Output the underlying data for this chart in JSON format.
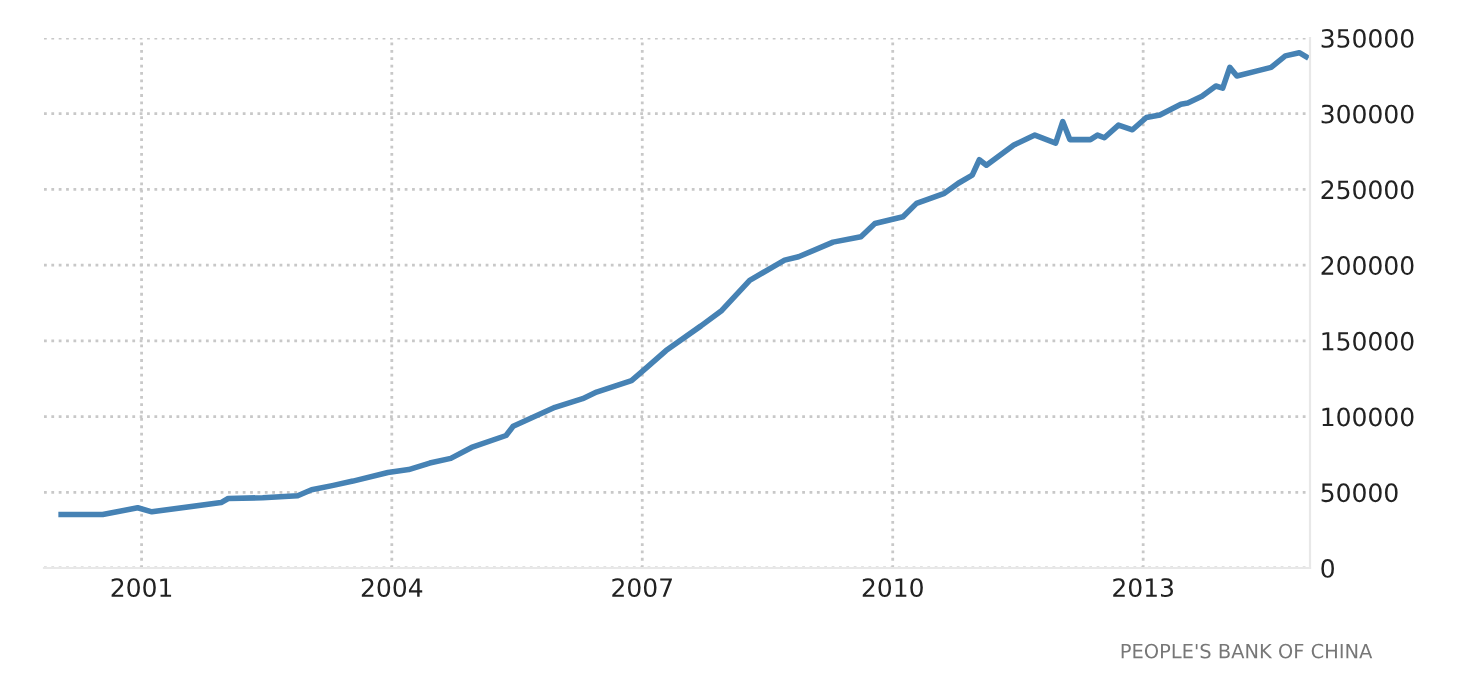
{
  "chart_data": {
    "type": "line",
    "x": [
      "2000-01",
      "2000-07",
      "2000-12",
      "2001-02",
      "2001-12",
      "2002-01",
      "2002-06",
      "2002-11",
      "2003-01",
      "2003-04",
      "2003-07",
      "2003-12",
      "2004-03",
      "2004-06",
      "2004-09",
      "2004-12",
      "2005-05",
      "2005-06",
      "2005-12",
      "2006-04",
      "2006-06",
      "2006-11",
      "2007-01",
      "2007-04",
      "2007-09",
      "2007-12",
      "2008-04",
      "2008-09",
      "2008-11",
      "2009-04",
      "2009-08",
      "2009-10",
      "2010-02",
      "2010-04",
      "2010-08",
      "2010-10",
      "2010-12",
      "2011-01",
      "2011-02",
      "2011-06",
      "2011-09",
      "2011-12",
      "2012-01",
      "2012-02",
      "2012-05",
      "2012-06",
      "2012-07",
      "2012-09",
      "2012-11",
      "2013-01",
      "2013-03",
      "2013-06",
      "2013-07",
      "2013-09",
      "2013-11",
      "2013-12",
      "2014-01",
      "2014-02",
      "2014-05",
      "2014-07",
      "2014-09",
      "2014-11",
      "2014-12"
    ],
    "series": [
      {
        "color": "#4682b4",
        "values": [
          35300,
          35300,
          39800,
          37100,
          43200,
          45900,
          46400,
          47700,
          51700,
          54400,
          57400,
          63100,
          65000,
          69300,
          72400,
          79600,
          87500,
          93600,
          106100,
          111800,
          116200,
          123700,
          131700,
          143600,
          159900,
          170100,
          190000,
          203300,
          205500,
          215200,
          218800,
          227500,
          232000,
          240800,
          247400,
          254100,
          259400,
          269600,
          266000,
          279300,
          285900,
          280600,
          294800,
          282900,
          282900,
          285900,
          284100,
          292500,
          289400,
          297500,
          299200,
          306300,
          307100,
          311600,
          318300,
          316900,
          330600,
          324900,
          328300,
          330600,
          338200,
          340300,
          337600
        ]
      }
    ],
    "xlim": [
      "1999-11",
      "2015-01"
    ],
    "xticks": [
      {
        "value": "2001-01",
        "label": "2001"
      },
      {
        "value": "2004-01",
        "label": "2004"
      },
      {
        "value": "2007-01",
        "label": "2007"
      },
      {
        "value": "2010-01",
        "label": "2010"
      },
      {
        "value": "2013-01",
        "label": "2013"
      }
    ],
    "ylim": [
      0,
      350000
    ],
    "yticks": [
      0,
      50000,
      100000,
      150000,
      200000,
      250000,
      300000,
      350000
    ],
    "grid": true,
    "legend": false,
    "line_style": "solid",
    "annotations": [
      "PEOPLE'S BANK OF CHINA"
    ]
  }
}
